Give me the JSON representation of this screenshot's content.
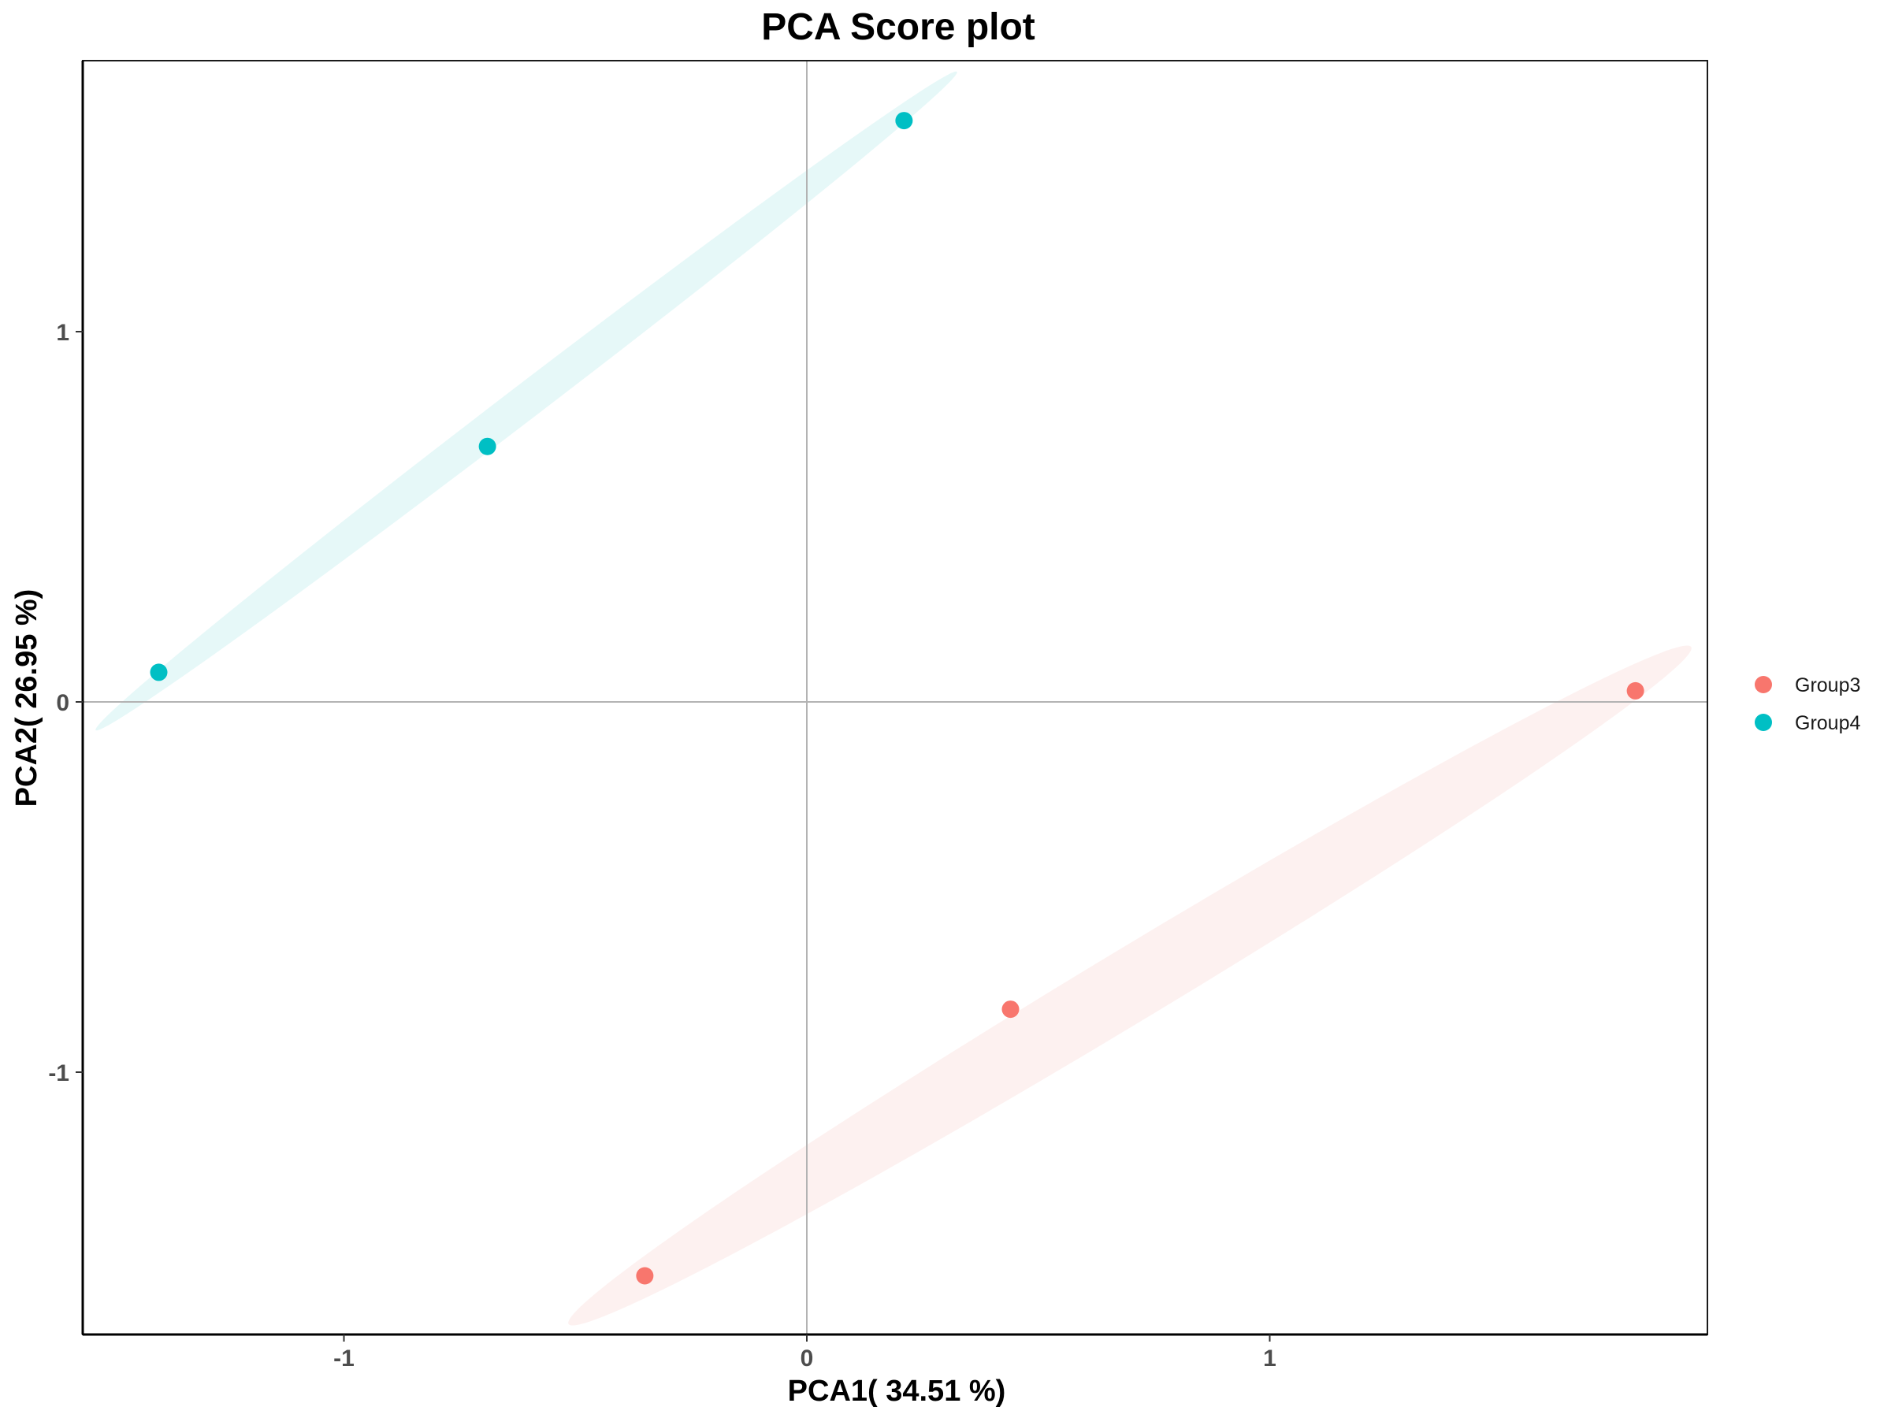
{
  "chart_data": {
    "type": "scatter",
    "title": "PCA Score plot",
    "xlabel": "PCA1( 34.51 %)",
    "ylabel": "PCA2( 26.95 %)",
    "xlim": [
      -1.56,
      1.95
    ],
    "ylim": [
      -1.71,
      1.73
    ],
    "x_ticks": [
      -1,
      0,
      1
    ],
    "y_ticks": [
      -1,
      0,
      1
    ],
    "x_tick_labels": [
      "-1",
      "0",
      "1"
    ],
    "y_tick_labels": [
      "-1",
      "0",
      "1"
    ],
    "grid": false,
    "reference_lines": {
      "x": 0,
      "y": 0
    },
    "legend_position": "right",
    "confidence_ellipses": true,
    "series": [
      {
        "name": "Group3",
        "color": "#F8766D",
        "fill": "#FDEFEE",
        "points": [
          {
            "x": 1.79,
            "y": 0.03
          },
          {
            "x": 0.44,
            "y": -0.83
          },
          {
            "x": -0.35,
            "y": -1.55
          }
        ]
      },
      {
        "name": "Group4",
        "color": "#00BFC4",
        "fill": "#E3F7F7",
        "points": [
          {
            "x": 0.21,
            "y": 1.57
          },
          {
            "x": -0.69,
            "y": 0.69
          },
          {
            "x": -1.4,
            "y": 0.08
          }
        ]
      }
    ]
  },
  "legend": {
    "items": [
      {
        "label": "Group3",
        "color": "#F8766D"
      },
      {
        "label": "Group4",
        "color": "#00BFC4"
      }
    ]
  }
}
